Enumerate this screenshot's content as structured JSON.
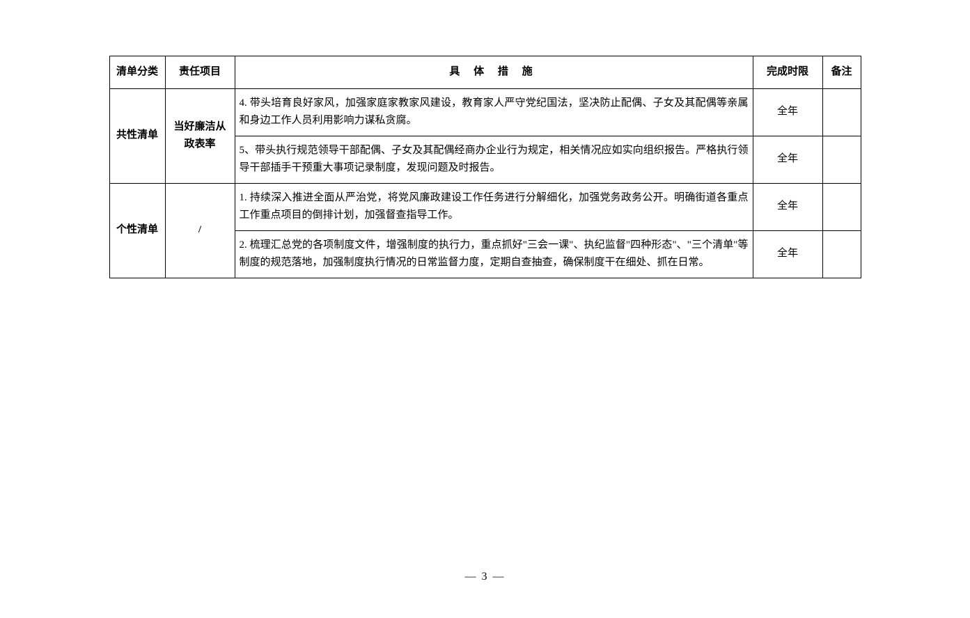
{
  "table": {
    "headers": {
      "category": "清单分类",
      "project": "责任项目",
      "measures": "具 体 措 施",
      "deadline": "完成时限",
      "remark": "备注"
    },
    "rows": [
      {
        "category": "共性清单",
        "project": "当好廉洁从政表率",
        "measure": "4. 带头培育良好家风，加强家庭家教家风建设，教育家人严守党纪国法，坚决防止配偶、子女及其配偶等亲属和身边工作人员利用影响力谋私贪腐。",
        "deadline": "全年",
        "remark": ""
      },
      {
        "measure": "5、带头执行规范领导干部配偶、子女及其配偶经商办企业行为规定，相关情况应如实向组织报告。严格执行领导干部插手干预重大事项记录制度，发现问题及时报告。",
        "deadline": "全年",
        "remark": ""
      },
      {
        "category": "个性清单",
        "project": "/",
        "measure": "1. 持续深入推进全面从严治党，将党风廉政建设工作任务进行分解细化，加强党务政务公开。明确街道各重点工作重点项目的倒排计划，加强督查指导工作。",
        "deadline": "全年",
        "remark": ""
      },
      {
        "measure": "2. 梳理汇总党的各项制度文件，增强制度的执行力，重点抓好\"三会一课\"、执纪监督\"四种形态\"、\"三个清单\"等制度的规范落地，加强制度执行情况的日常监督力度，定期自查抽查，确保制度干在细处、抓在日常。",
        "deadline": "全年",
        "remark": ""
      }
    ]
  },
  "page_number": "— 3 —",
  "styling": {
    "border_color": "#000000",
    "border_width": 1.5,
    "text_color": "#000000",
    "background_color": "#ffffff",
    "font_family": "SimSun",
    "header_fontsize": 15,
    "cell_fontsize": 15,
    "line_height": 1.7,
    "column_widths": {
      "category": 80,
      "project": 100,
      "measures": "auto",
      "deadline": 100,
      "remark": 55
    }
  }
}
